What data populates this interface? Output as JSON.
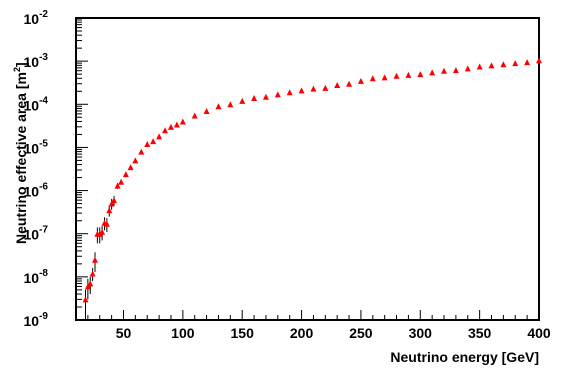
{
  "chart_data": {
    "type": "scatter",
    "title": "",
    "xlabel": "Neutrino energy [GeV]",
    "ylabel": "Neutrino effective area [m²]",
    "ylabel_main": "Neutrino effective area [m",
    "ylabel_sup": "2",
    "ylabel_close": "]",
    "xlim": [
      10,
      400
    ],
    "ylim": [
      1e-09,
      0.01
    ],
    "yscale": "log",
    "grid": false,
    "x_ticks": [
      {
        "value": 50,
        "label": "50"
      },
      {
        "value": 100,
        "label": "100"
      },
      {
        "value": 150,
        "label": "150"
      },
      {
        "value": 200,
        "label": "200"
      },
      {
        "value": 250,
        "label": "250"
      },
      {
        "value": 300,
        "label": "300"
      },
      {
        "value": 350,
        "label": "350"
      },
      {
        "value": 400,
        "label": "400"
      }
    ],
    "y_ticks": [
      {
        "exp": -9,
        "base": "10",
        "sup": "-9"
      },
      {
        "exp": -8,
        "base": "10",
        "sup": "-8"
      },
      {
        "exp": -7,
        "base": "10",
        "sup": "-7"
      },
      {
        "exp": -6,
        "base": "10",
        "sup": "-6"
      },
      {
        "exp": -5,
        "base": "10",
        "sup": "-5"
      },
      {
        "exp": -4,
        "base": "10",
        "sup": "-4"
      },
      {
        "exp": -3,
        "base": "10",
        "sup": "-3"
      },
      {
        "exp": -2,
        "base": "10",
        "sup": "-2"
      }
    ],
    "series": [
      {
        "marker": "triangle-up",
        "color": "#ff0000",
        "error_bar_color": "#000000",
        "x": [
          18,
          20,
          22,
          24,
          26,
          28,
          30,
          32,
          34,
          36,
          38,
          40,
          42,
          45,
          48,
          52,
          56,
          60,
          65,
          70,
          75,
          80,
          85,
          90,
          95,
          100,
          110,
          120,
          130,
          140,
          150,
          160,
          170,
          180,
          190,
          200,
          210,
          220,
          230,
          240,
          250,
          260,
          270,
          280,
          290,
          300,
          310,
          320,
          330,
          340,
          350,
          360,
          370,
          380,
          390,
          400
        ],
        "y": [
          3e-09,
          6e-09,
          7e-09,
          1.2e-08,
          2.5e-08,
          1e-07,
          1e-07,
          1.1e-07,
          1.8e-07,
          1.7e-07,
          3.5e-07,
          5e-07,
          6e-07,
          1.3e-06,
          1.6e-06,
          2.4e-06,
          3.5e-06,
          5e-06,
          8e-06,
          1.2e-05,
          1.4e-05,
          1.8e-05,
          2.5e-05,
          3e-05,
          3.4e-05,
          4e-05,
          5.5e-05,
          7e-05,
          9e-05,
          0.0001,
          0.00012,
          0.00014,
          0.00015,
          0.00017,
          0.00019,
          0.00021,
          0.00023,
          0.00024,
          0.00028,
          0.0003,
          0.00035,
          0.0004,
          0.00042,
          0.00046,
          0.00048,
          0.0005,
          0.00055,
          0.0006,
          0.00062,
          0.00068,
          0.00075,
          0.0008,
          0.00085,
          0.0009,
          0.00095,
          0.00105
        ],
        "err_low": [
          2e-09,
          3e-09,
          3e-09,
          4e-09,
          1.2e-08,
          4e-08,
          4e-08,
          4e-08,
          6e-08,
          6e-08,
          1e-07,
          1.4e-07,
          1.5e-07,
          2e-07,
          2e-07,
          2e-07,
          2e-07,
          3e-07,
          4e-07,
          5e-07,
          5e-07,
          6e-07,
          8e-07,
          9e-07,
          1e-06,
          1e-06,
          1e-06,
          1.5e-06,
          2e-06,
          2e-06,
          2e-06,
          3e-06,
          3e-06,
          3e-06,
          3e-06,
          4e-06,
          4e-06,
          4e-06,
          5e-06,
          5e-06,
          5e-06,
          6e-06,
          6e-06,
          7e-06,
          7e-06,
          8e-06,
          8e-06,
          9e-06,
          9e-06,
          1e-05,
          1e-05,
          1e-05,
          1e-05,
          1e-05,
          1e-05,
          1e-05
        ]
      }
    ]
  }
}
